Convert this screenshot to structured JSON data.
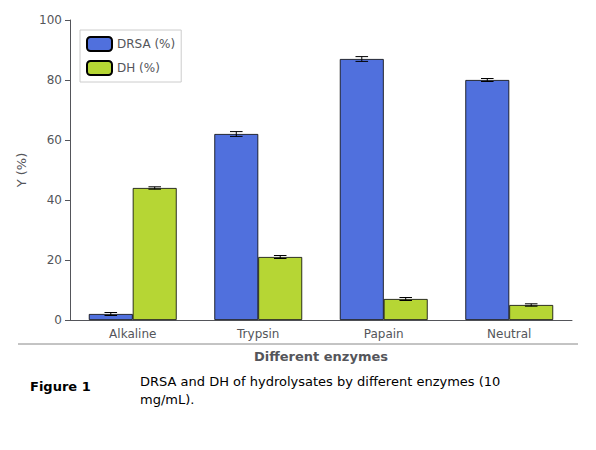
{
  "chart_data": {
    "type": "bar",
    "categories": [
      "Alkaline",
      "Trypsin",
      "Papain",
      "Neutral"
    ],
    "series": [
      {
        "name": "DRSA (%)",
        "values": [
          2.0,
          62.0,
          87.0,
          80.0
        ],
        "errors": [
          0.5,
          0.8,
          0.8,
          0.5
        ]
      },
      {
        "name": "DH (%)",
        "values": [
          44.0,
          21.0,
          7.0,
          5.0
        ],
        "errors": [
          0.4,
          0.5,
          0.5,
          0.4
        ]
      }
    ],
    "xlabel": "Different enzymes",
    "ylabel": "Y (%)",
    "ylim": [
      0,
      100
    ],
    "yticks": [
      0,
      20,
      40,
      60,
      80,
      100
    ],
    "grid": false,
    "legend": "upper left",
    "annotations": [
      "Figure 1",
      "DRSA and DH of hydrolysates by different enzymes (10\nmg/mL)."
    ]
  }
}
